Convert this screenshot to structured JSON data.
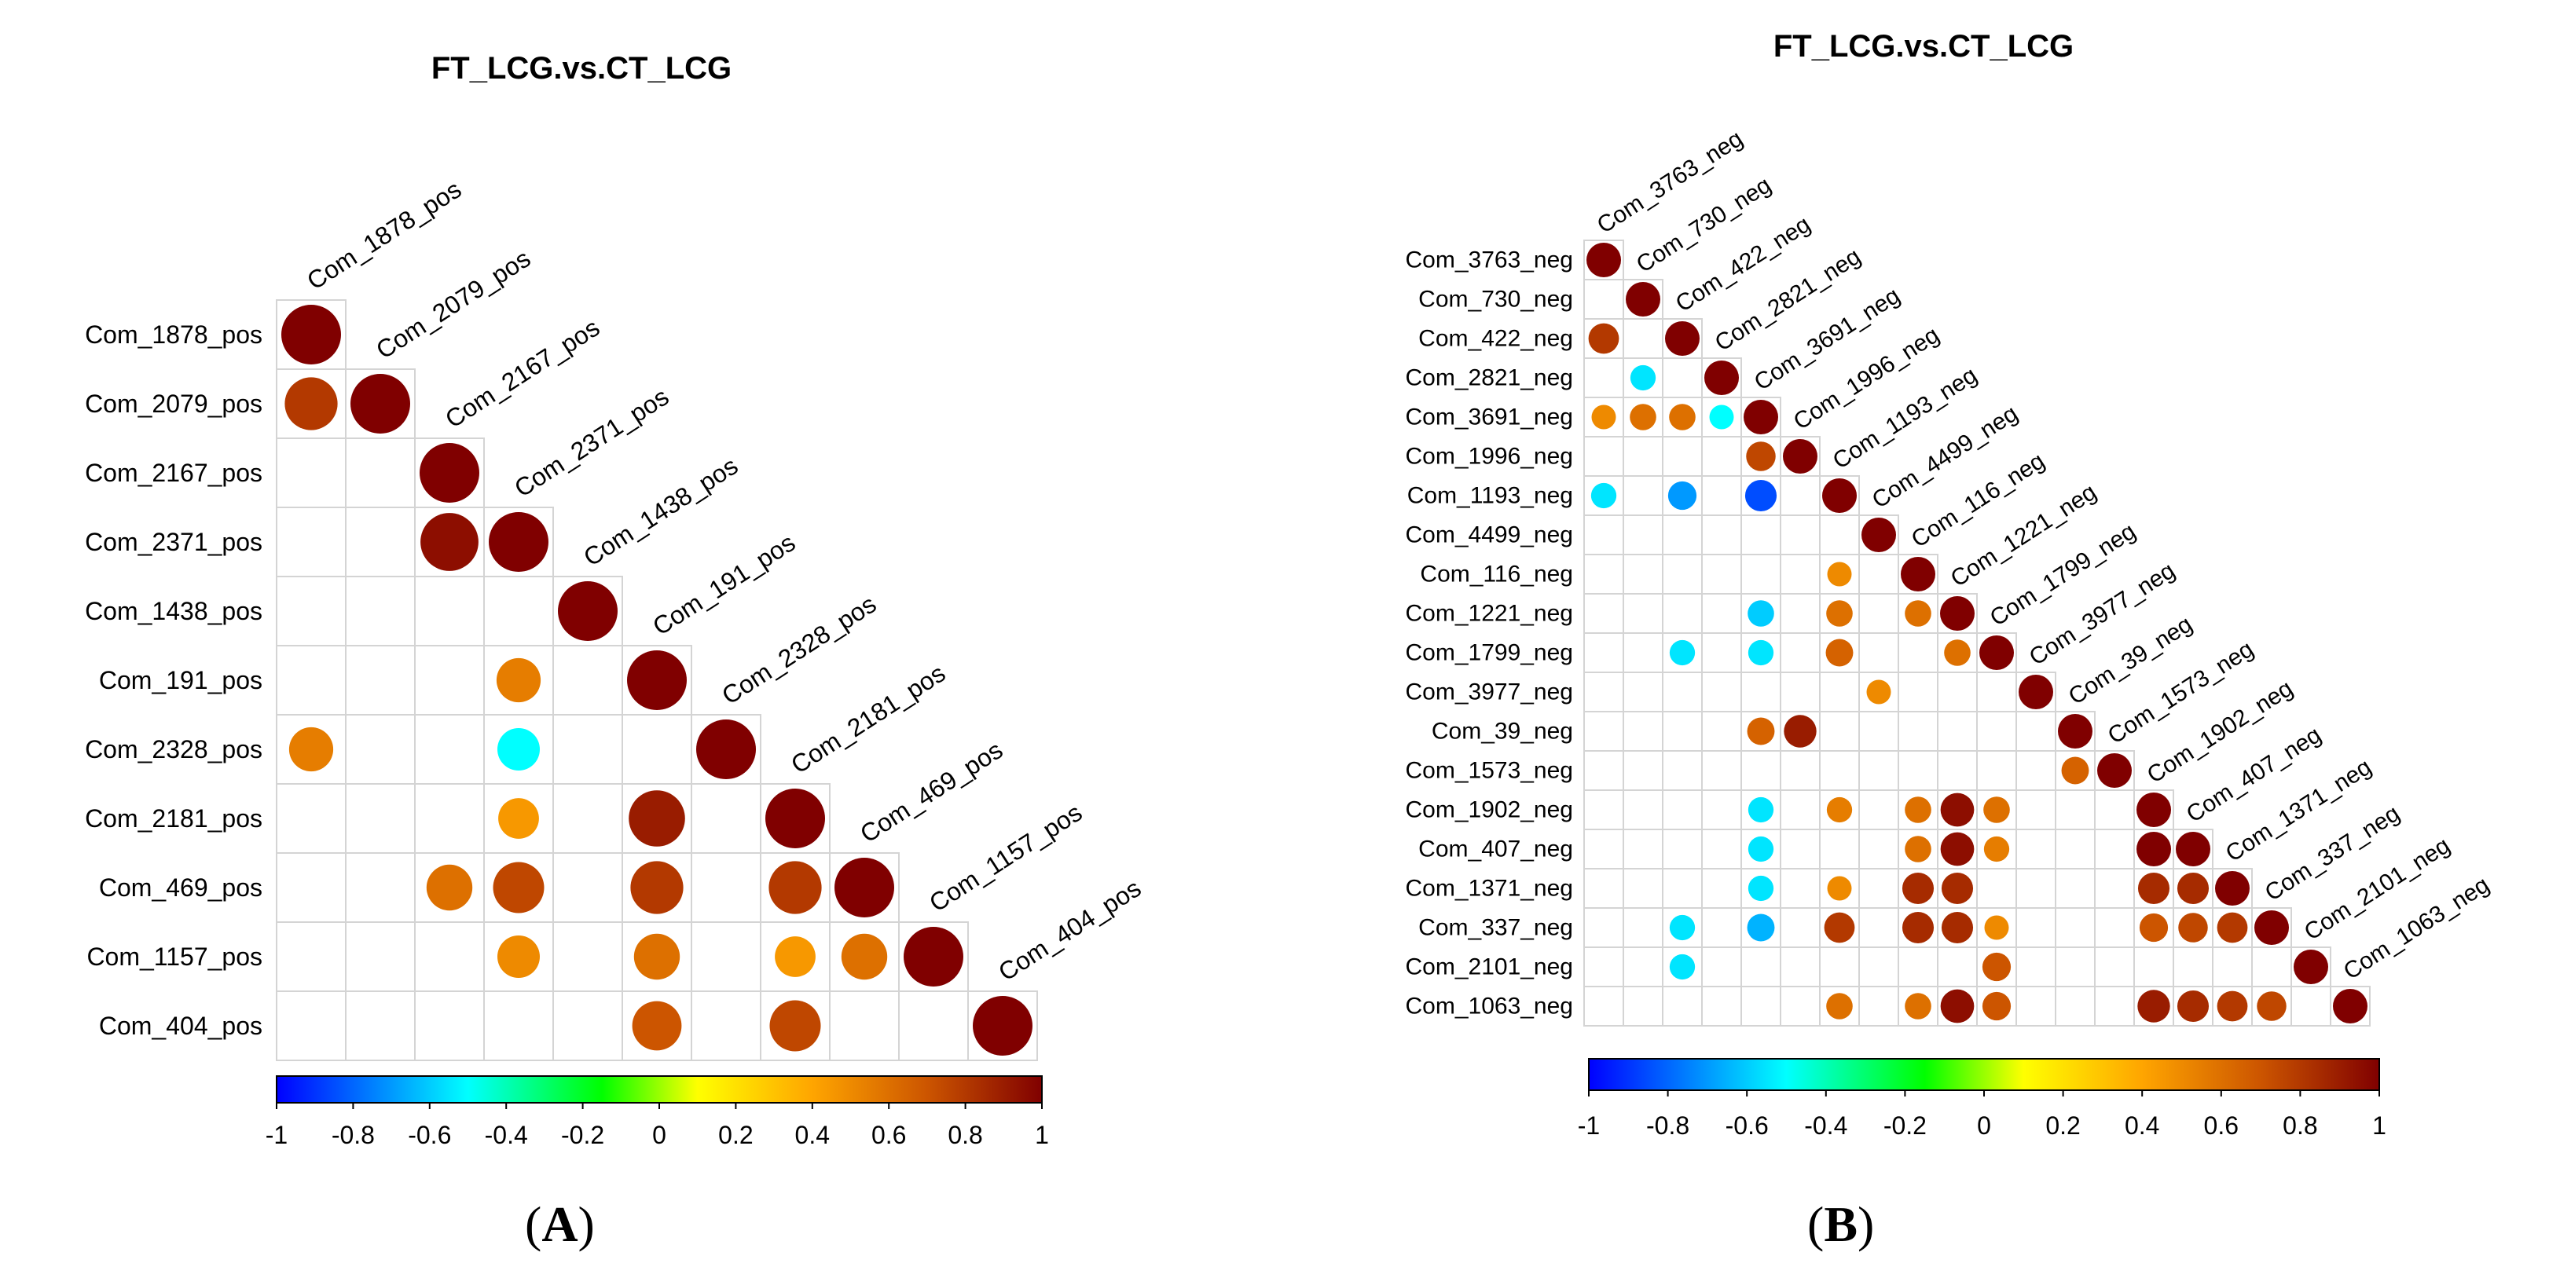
{
  "panels": {
    "A": {
      "caption_open": "(",
      "caption_letter": "A",
      "caption_close": ")"
    },
    "B": {
      "caption_open": "(",
      "caption_letter": "B",
      "caption_close": ")"
    }
  },
  "colorscale": {
    "stops": [
      "#0000ff",
      "#00ffff",
      "#00ff00",
      "#ffff00",
      "#ffa500",
      "#cc5500",
      "#800000"
    ],
    "stop_positions": [
      -1,
      -0.5,
      -0.15,
      0.1,
      0.4,
      0.7,
      1
    ]
  },
  "chart_data": [
    {
      "type": "heatmap",
      "style": "correlation-circles-lower-triangle",
      "title": "FT_LCG.vs.CT_LCG",
      "labels": [
        "Com_1878_pos",
        "Com_2079_pos",
        "Com_2167_pos",
        "Com_2371_pos",
        "Com_1438_pos",
        "Com_191_pos",
        "Com_2328_pos",
        "Com_2181_pos",
        "Com_469_pos",
        "Com_1157_pos",
        "Com_404_pos"
      ],
      "cells": [
        [
          0,
          0,
          1
        ],
        [
          1,
          0,
          0.8
        ],
        [
          1,
          1,
          1
        ],
        [
          2,
          2,
          1
        ],
        [
          3,
          2,
          0.95
        ],
        [
          3,
          3,
          1
        ],
        [
          4,
          4,
          1
        ],
        [
          5,
          3,
          0.55
        ],
        [
          5,
          5,
          1
        ],
        [
          6,
          0,
          0.55
        ],
        [
          6,
          3,
          -0.5
        ],
        [
          6,
          6,
          1
        ],
        [
          7,
          3,
          0.45
        ],
        [
          7,
          5,
          0.9
        ],
        [
          7,
          7,
          1
        ],
        [
          8,
          2,
          0.6
        ],
        [
          8,
          3,
          0.75
        ],
        [
          8,
          5,
          0.8
        ],
        [
          8,
          7,
          0.8
        ],
        [
          8,
          8,
          1
        ],
        [
          9,
          3,
          0.5
        ],
        [
          9,
          5,
          0.6
        ],
        [
          9,
          7,
          0.45
        ],
        [
          9,
          8,
          0.6
        ],
        [
          9,
          9,
          1
        ],
        [
          10,
          5,
          0.7
        ],
        [
          10,
          7,
          0.75
        ],
        [
          10,
          10,
          1
        ]
      ],
      "colorbar": {
        "min": -1,
        "max": 1,
        "ticks": [
          "-1",
          "-0.8",
          "-0.6",
          "-0.4",
          "-0.2",
          "0",
          "0.2",
          "0.4",
          "0.6",
          "0.8",
          "1"
        ]
      }
    },
    {
      "type": "heatmap",
      "style": "correlation-circles-lower-triangle",
      "title": "FT_LCG.vs.CT_LCG",
      "labels": [
        "Com_3763_neg",
        "Com_730_neg",
        "Com_422_neg",
        "Com_2821_neg",
        "Com_3691_neg",
        "Com_1996_neg",
        "Com_1193_neg",
        "Com_4499_neg",
        "Com_116_neg",
        "Com_1221_neg",
        "Com_1799_neg",
        "Com_3977_neg",
        "Com_39_neg",
        "Com_1573_neg",
        "Com_1902_neg",
        "Com_407_neg",
        "Com_1371_neg",
        "Com_337_neg",
        "Com_2101_neg",
        "Com_1063_neg"
      ],
      "cells": [
        [
          0,
          0,
          1
        ],
        [
          1,
          1,
          1
        ],
        [
          2,
          0,
          0.8
        ],
        [
          2,
          2,
          1
        ],
        [
          3,
          1,
          -0.55
        ],
        [
          3,
          3,
          1
        ],
        [
          4,
          0,
          0.5
        ],
        [
          4,
          1,
          0.6
        ],
        [
          4,
          2,
          0.6
        ],
        [
          4,
          3,
          -0.5
        ],
        [
          4,
          4,
          1
        ],
        [
          5,
          4,
          0.75
        ],
        [
          5,
          5,
          1
        ],
        [
          6,
          0,
          -0.55
        ],
        [
          6,
          2,
          -0.7
        ],
        [
          6,
          4,
          -0.85
        ],
        [
          6,
          6,
          1
        ],
        [
          7,
          7,
          1
        ],
        [
          8,
          6,
          0.5
        ],
        [
          8,
          8,
          1
        ],
        [
          9,
          4,
          -0.6
        ],
        [
          9,
          6,
          0.6
        ],
        [
          9,
          8,
          0.6
        ],
        [
          9,
          9,
          1
        ],
        [
          10,
          2,
          -0.55
        ],
        [
          10,
          4,
          -0.55
        ],
        [
          10,
          6,
          0.65
        ],
        [
          10,
          9,
          0.6
        ],
        [
          10,
          10,
          1
        ],
        [
          11,
          7,
          0.5
        ],
        [
          11,
          11,
          1
        ],
        [
          12,
          4,
          0.65
        ],
        [
          12,
          5,
          0.9
        ],
        [
          12,
          12,
          1
        ],
        [
          13,
          12,
          0.65
        ],
        [
          13,
          13,
          1
        ],
        [
          14,
          4,
          -0.55
        ],
        [
          14,
          6,
          0.55
        ],
        [
          14,
          8,
          0.6
        ],
        [
          14,
          9,
          0.95
        ],
        [
          14,
          10,
          0.6
        ],
        [
          14,
          14,
          1
        ],
        [
          15,
          4,
          -0.55
        ],
        [
          15,
          8,
          0.6
        ],
        [
          15,
          9,
          0.95
        ],
        [
          15,
          10,
          0.55
        ],
        [
          15,
          14,
          1
        ],
        [
          15,
          15,
          1
        ],
        [
          16,
          4,
          -0.55
        ],
        [
          16,
          6,
          0.5
        ],
        [
          16,
          8,
          0.85
        ],
        [
          16,
          9,
          0.85
        ],
        [
          16,
          14,
          0.85
        ],
        [
          16,
          15,
          0.85
        ],
        [
          16,
          16,
          1
        ],
        [
          17,
          2,
          -0.55
        ],
        [
          17,
          4,
          -0.65
        ],
        [
          17,
          6,
          0.8
        ],
        [
          17,
          8,
          0.85
        ],
        [
          17,
          9,
          0.85
        ],
        [
          17,
          10,
          0.5
        ],
        [
          17,
          14,
          0.7
        ],
        [
          17,
          15,
          0.75
        ],
        [
          17,
          16,
          0.8
        ],
        [
          17,
          17,
          1
        ],
        [
          18,
          2,
          -0.55
        ],
        [
          18,
          10,
          0.7
        ],
        [
          18,
          18,
          1
        ],
        [
          19,
          6,
          0.6
        ],
        [
          19,
          8,
          0.6
        ],
        [
          19,
          9,
          0.95
        ],
        [
          19,
          10,
          0.7
        ],
        [
          19,
          14,
          0.9
        ],
        [
          19,
          15,
          0.85
        ],
        [
          19,
          16,
          0.8
        ],
        [
          19,
          17,
          0.75
        ],
        [
          19,
          19,
          1
        ]
      ],
      "colorbar": {
        "min": -1,
        "max": 1,
        "ticks": [
          "-1",
          "-0.8",
          "-0.6",
          "-0.4",
          "-0.2",
          "0",
          "0.2",
          "0.4",
          "0.6",
          "0.8",
          "1"
        ]
      }
    }
  ]
}
